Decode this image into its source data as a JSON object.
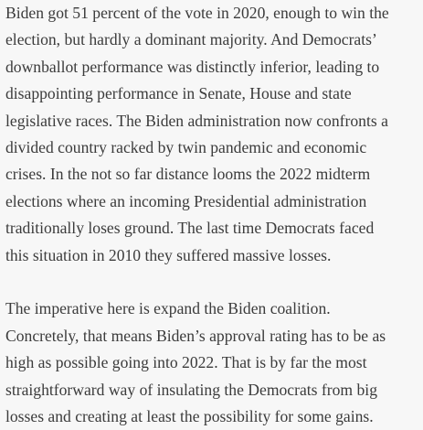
{
  "paragraphs": [
    {
      "lines": [
        "Biden got 51 percent of the vote in 2020, enough to win the",
        "election, but hardly a dominant majority. And Democrats’",
        "downballot performance was distinctly inferior, leading to",
        "disappointing performance in Senate, House and state",
        "legislative races. The Biden administration now confronts a",
        "divided country racked by twin pandemic and economic",
        "crises. In the not so far distance looms the 2022 midterm",
        "elections where an incoming Presidential administration",
        "traditionally loses ground. The last time Democrats faced",
        "this situation in 2010 they suffered massive losses."
      ]
    },
    {
      "lines": [
        "The imperative here is expand the Biden coalition.",
        "Concretely, that means Biden’s approval rating has to be as",
        "high as possible going into 2022. That is by far the most",
        "straightforward way of insulating the Democrats from big",
        "losses and creating at least the possibility for some gains."
      ]
    }
  ]
}
